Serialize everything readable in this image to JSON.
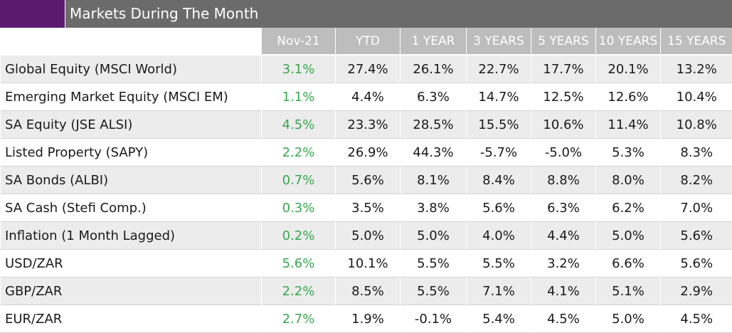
{
  "title": "Markets During The Month",
  "columns": [
    "Nov-21",
    "YTD",
    "1 YEAR",
    "3 YEARS",
    "5 YEARS",
    "10 YEARS",
    "15 YEARS"
  ],
  "rows": [
    {
      "label": "Global Equity (MSCI World)",
      "values": [
        "3.1%",
        "27.4%",
        "26.1%",
        "22.7%",
        "17.7%",
        "20.1%",
        "13.2%"
      ]
    },
    {
      "label": "Emerging Market Equity (MSCI EM)",
      "values": [
        "1.1%",
        "4.4%",
        "6.3%",
        "14.7%",
        "12.5%",
        "12.6%",
        "10.4%"
      ]
    },
    {
      "label": "SA Equity (JSE ALSI)",
      "values": [
        "4.5%",
        "23.3%",
        "28.5%",
        "15.5%",
        "10.6%",
        "11.4%",
        "10.8%"
      ]
    },
    {
      "label": "Listed Property (SAPY)",
      "values": [
        "2.2%",
        "26.9%",
        "44.3%",
        "-5.7%",
        "-5.0%",
        "5.3%",
        "8.3%"
      ]
    },
    {
      "label": "SA Bonds (ALBI)",
      "values": [
        "0.7%",
        "5.6%",
        "8.1%",
        "8.4%",
        "8.8%",
        "8.0%",
        "8.2%"
      ]
    },
    {
      "label": "SA Cash (Stefi Comp.)",
      "values": [
        "0.3%",
        "3.5%",
        "3.8%",
        "5.6%",
        "6.3%",
        "6.2%",
        "7.0%"
      ]
    },
    {
      "label": "Inflation (1 Month Lagged)",
      "values": [
        "0.2%",
        "5.0%",
        "5.0%",
        "4.0%",
        "4.4%",
        "5.0%",
        "5.6%"
      ]
    },
    {
      "label": "USD/ZAR",
      "values": [
        "5.6%",
        "10.1%",
        "5.5%",
        "5.5%",
        "3.2%",
        "6.6%",
        "5.6%"
      ]
    },
    {
      "label": "GBP/ZAR",
      "values": [
        "2.2%",
        "8.5%",
        "5.5%",
        "7.1%",
        "4.1%",
        "5.1%",
        "2.9%"
      ]
    },
    {
      "label": "EUR/ZAR",
      "values": [
        "2.7%",
        "1.9%",
        "-0.1%",
        "5.4%",
        "4.5%",
        "5.0%",
        "4.5%"
      ]
    }
  ],
  "colors": {
    "title_swatch": "#5c1a6e",
    "title_bar": "#6b6b6b",
    "header_bg": "#bdbdbd",
    "positive_month": "#3aa651",
    "row_stripe": "#ececec"
  }
}
